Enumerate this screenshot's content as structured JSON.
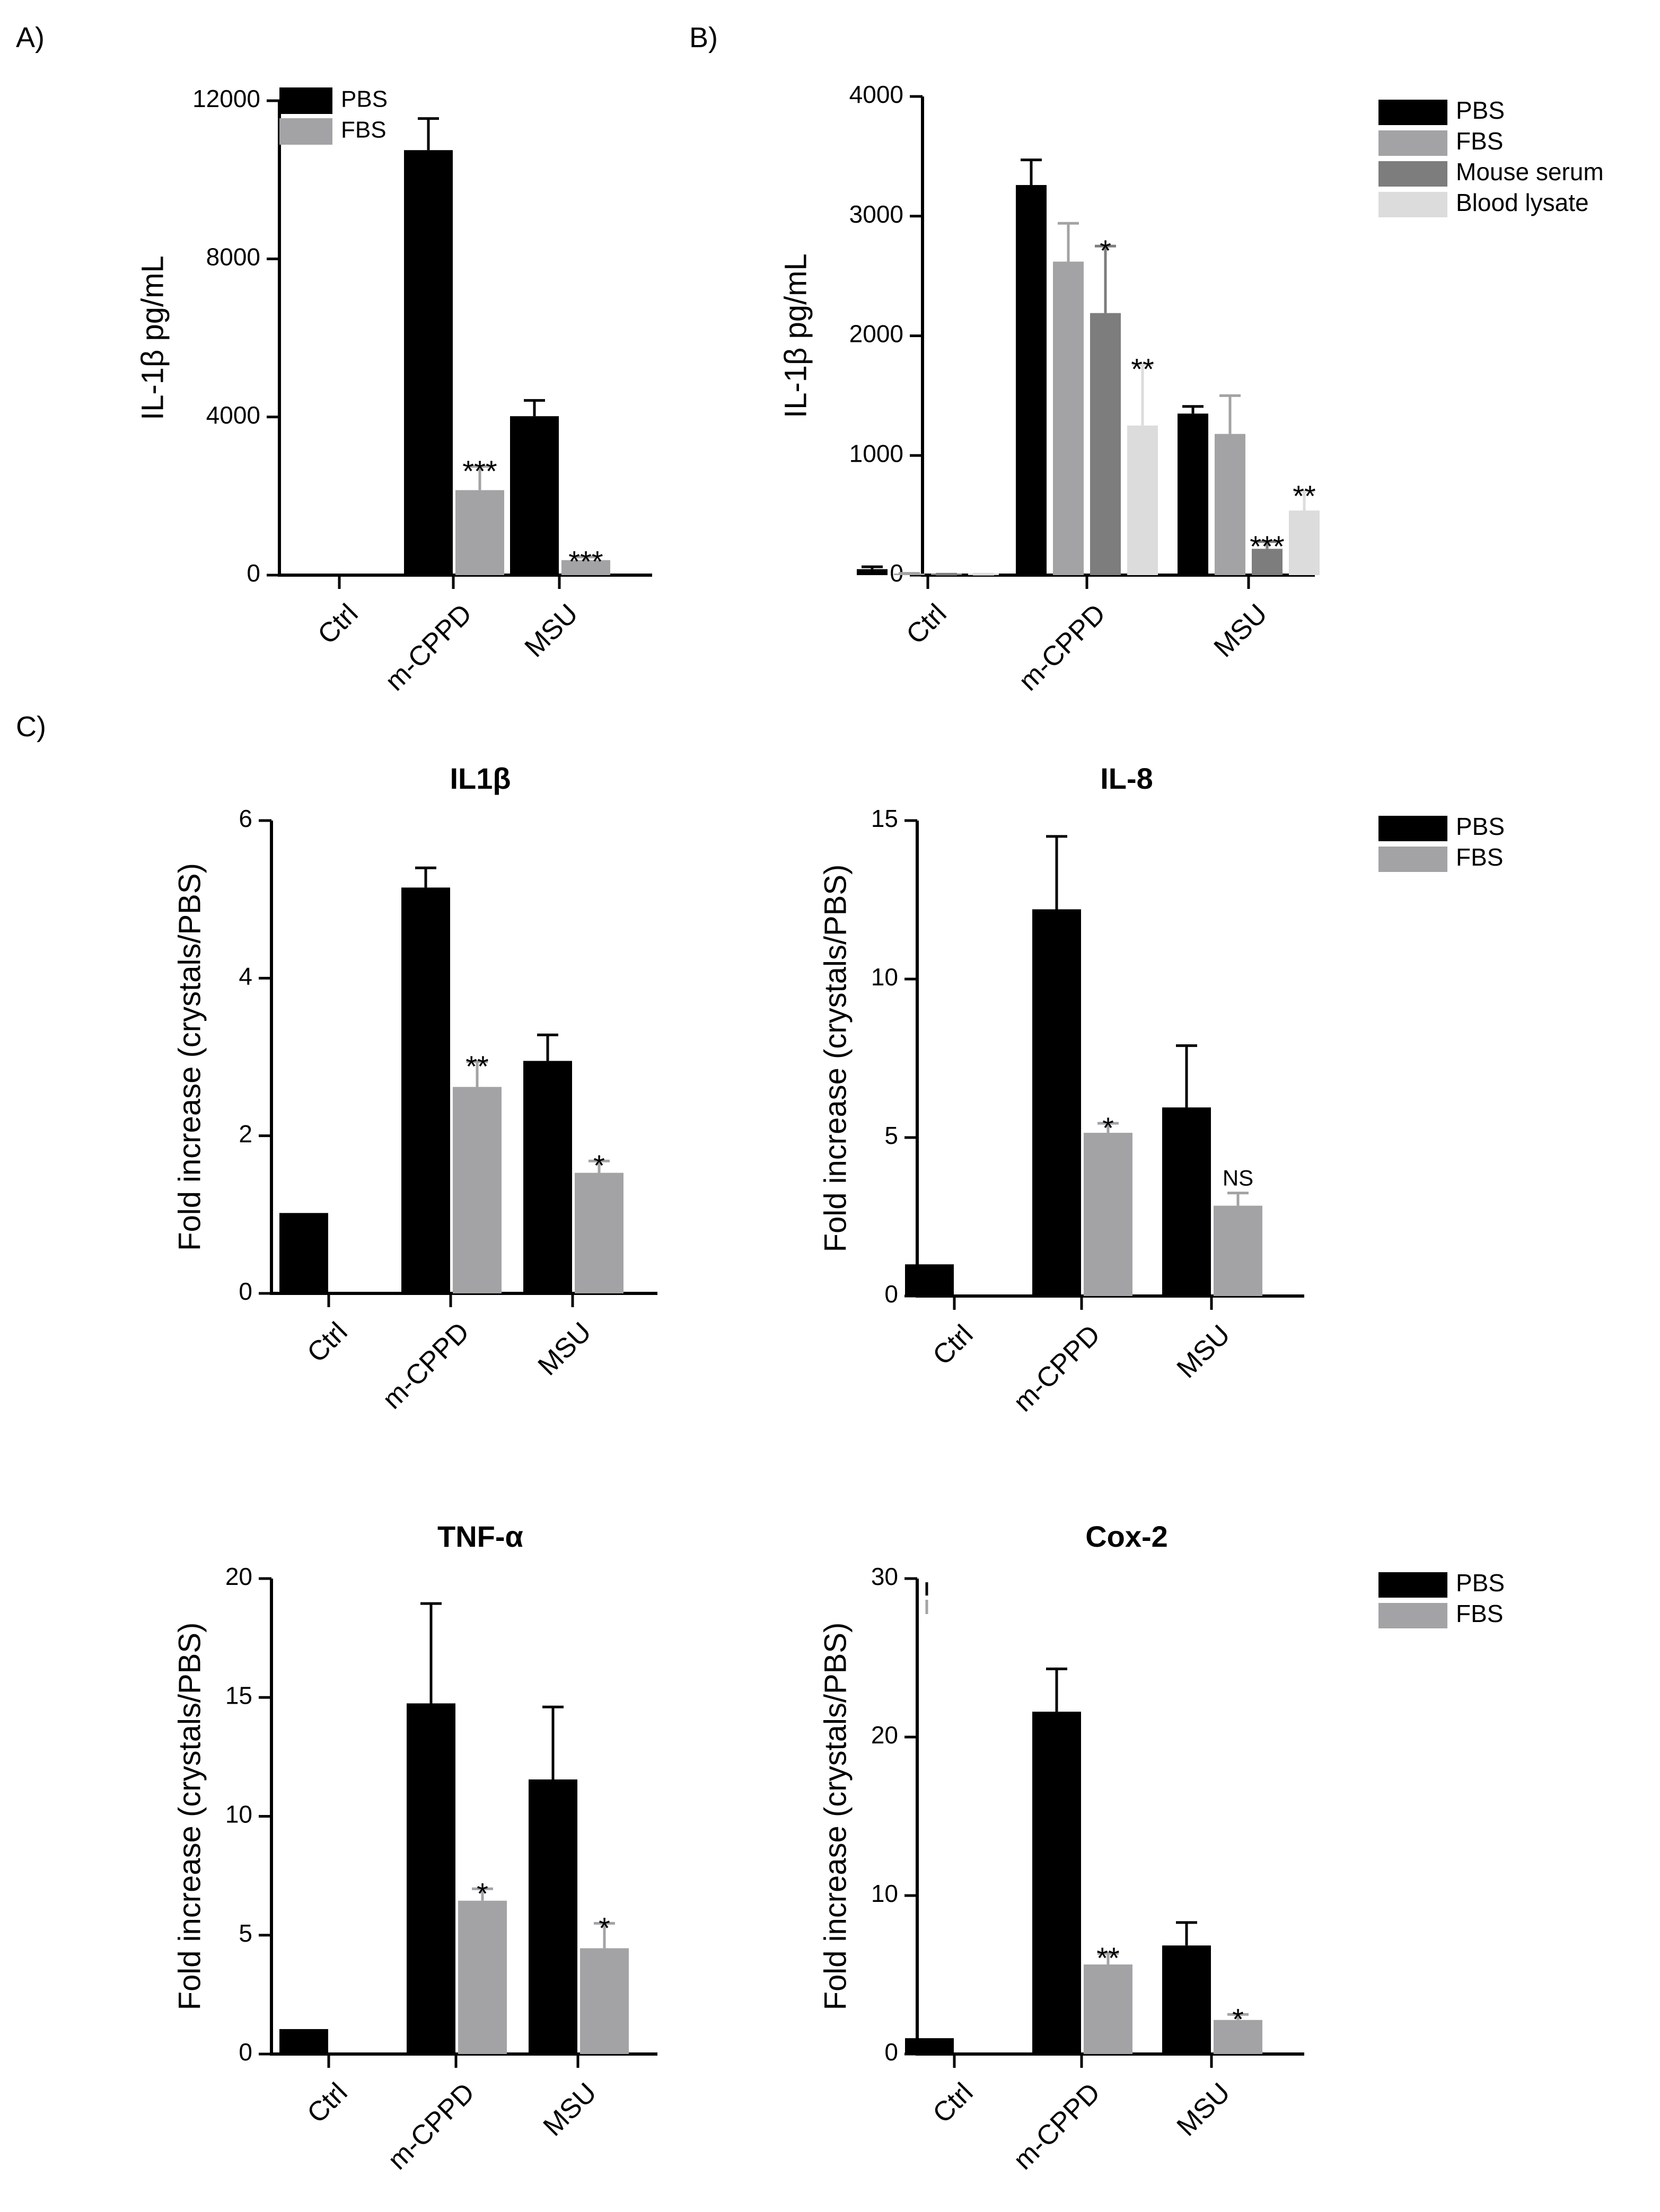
{
  "panel_labels": {
    "a": "A)",
    "b": "B)",
    "c": "C)"
  },
  "colors": {
    "PBS": "#000000",
    "FBS": "#a3a3a6",
    "Mouse serum": "#7d7d7d",
    "Blood lysate": "#dcdcdc"
  },
  "chart_data": [
    {
      "id": "A",
      "type": "bar",
      "title": "",
      "xlabel": "",
      "ylabel": "IL-1β pg/mL",
      "ylim": [
        0,
        12000
      ],
      "yticks": [
        "0",
        "4000",
        "8000",
        "12000"
      ],
      "categories": [
        "Ctrl",
        "m-CPPD",
        "MSU"
      ],
      "legend": "top-left",
      "series": [
        {
          "name": "PBS",
          "values": [
            0,
            10750,
            4020
          ],
          "errors": [
            0,
            800,
            400
          ],
          "sig": [
            "",
            "",
            ""
          ]
        },
        {
          "name": "FBS",
          "values": [
            0,
            2150,
            380
          ],
          "errors": [
            0,
            600,
            80
          ],
          "sig": [
            "",
            "***",
            "***"
          ]
        }
      ]
    },
    {
      "id": "B",
      "type": "bar",
      "title": "",
      "xlabel": "",
      "ylabel": "IL-1β pg/mL",
      "ylim": [
        0,
        4000
      ],
      "yticks": [
        "0",
        "1000",
        "2000",
        "3000",
        "4000"
      ],
      "categories": [
        "Ctrl",
        "m-CPPD",
        "MSU"
      ],
      "legend": "right",
      "series": [
        {
          "name": "PBS",
          "values": [
            50,
            3260,
            1350
          ],
          "errors": [
            20,
            210,
            60
          ],
          "sig": [
            "",
            "",
            ""
          ]
        },
        {
          "name": "FBS",
          "values": [
            10,
            2620,
            1180
          ],
          "errors": [
            5,
            320,
            320
          ],
          "sig": [
            "",
            "",
            ""
          ]
        },
        {
          "name": "Mouse serum",
          "values": [
            5,
            2190,
            220
          ],
          "errors": [
            3,
            560,
            60
          ],
          "sig": [
            "",
            "*",
            "***"
          ]
        },
        {
          "name": "Blood lysate",
          "values": [
            5,
            1250,
            540
          ],
          "errors": [
            3,
            510,
            160
          ],
          "sig": [
            "",
            "**",
            "**"
          ]
        }
      ]
    },
    {
      "id": "C1",
      "type": "bar",
      "title": "IL1β",
      "xlabel": "",
      "ylabel": "Fold increase (crystals/PBS)",
      "ylim": [
        0,
        6
      ],
      "yticks": [
        "0",
        "2",
        "4",
        "6"
      ],
      "categories": [
        "Ctrl",
        "m-CPPD",
        "MSU"
      ],
      "legend": "right",
      "series": [
        {
          "name": "PBS",
          "values": [
            1.02,
            5.15,
            2.95
          ],
          "errors": [
            0,
            0.25,
            0.33
          ],
          "sig": [
            "",
            "",
            ""
          ]
        },
        {
          "name": "FBS",
          "values": [
            0,
            2.62,
            1.53
          ],
          "errors": [
            0,
            0.32,
            0.15
          ],
          "sig": [
            "",
            "**",
            "*"
          ]
        }
      ]
    },
    {
      "id": "C2",
      "type": "bar",
      "title": "IL-8",
      "xlabel": "",
      "ylabel": "Fold increase (crystals/PBS)",
      "ylim": [
        0,
        15
      ],
      "yticks": [
        "0",
        "5",
        "10",
        "15"
      ],
      "categories": [
        "Ctrl",
        "m-CPPD",
        "MSU"
      ],
      "legend": "none",
      "series": [
        {
          "name": "PBS",
          "values": [
            1.0,
            12.2,
            5.95
          ],
          "errors": [
            0,
            2.3,
            1.95
          ],
          "sig": [
            "",
            "",
            ""
          ]
        },
        {
          "name": "FBS",
          "values": [
            0,
            5.15,
            2.85
          ],
          "errors": [
            0,
            0.3,
            0.4
          ],
          "sig": [
            "",
            "*",
            "NS"
          ]
        }
      ]
    },
    {
      "id": "C3",
      "type": "bar",
      "title": "TNF-α",
      "xlabel": "",
      "ylabel": "Fold increase (crystals/PBS)",
      "ylim": [
        0,
        20
      ],
      "yticks": [
        "0",
        "5",
        "10",
        "15",
        "20"
      ],
      "categories": [
        "Ctrl",
        "m-CPPD",
        "MSU"
      ],
      "legend": "none",
      "series": [
        {
          "name": "PBS",
          "values": [
            1.05,
            14.75,
            11.55
          ],
          "errors": [
            0,
            4.2,
            3.05
          ],
          "sig": [
            "",
            "",
            ""
          ]
        },
        {
          "name": "FBS",
          "values": [
            0,
            6.45,
            4.45
          ],
          "errors": [
            0,
            0.5,
            1.05
          ],
          "sig": [
            "",
            "*",
            "*"
          ]
        }
      ]
    },
    {
      "id": "C4",
      "type": "bar",
      "title": "Cox-2",
      "xlabel": "",
      "ylabel": "Fold increase (crystals/PBS)",
      "ylim": [
        0,
        30
      ],
      "yticks": [
        "0",
        "10",
        "20",
        "30"
      ],
      "categories": [
        "Ctrl",
        "m-CPPD",
        "MSU"
      ],
      "legend": "right",
      "series": [
        {
          "name": "PBS",
          "values": [
            1.0,
            21.6,
            6.85
          ],
          "errors": [
            0,
            2.7,
            1.45
          ],
          "sig": [
            "",
            "",
            ""
          ]
        },
        {
          "name": "FBS",
          "values": [
            0,
            5.65,
            2.15
          ],
          "errors": [
            0,
            0.7,
            0.35
          ],
          "sig": [
            "",
            "**",
            "*"
          ]
        }
      ]
    }
  ]
}
